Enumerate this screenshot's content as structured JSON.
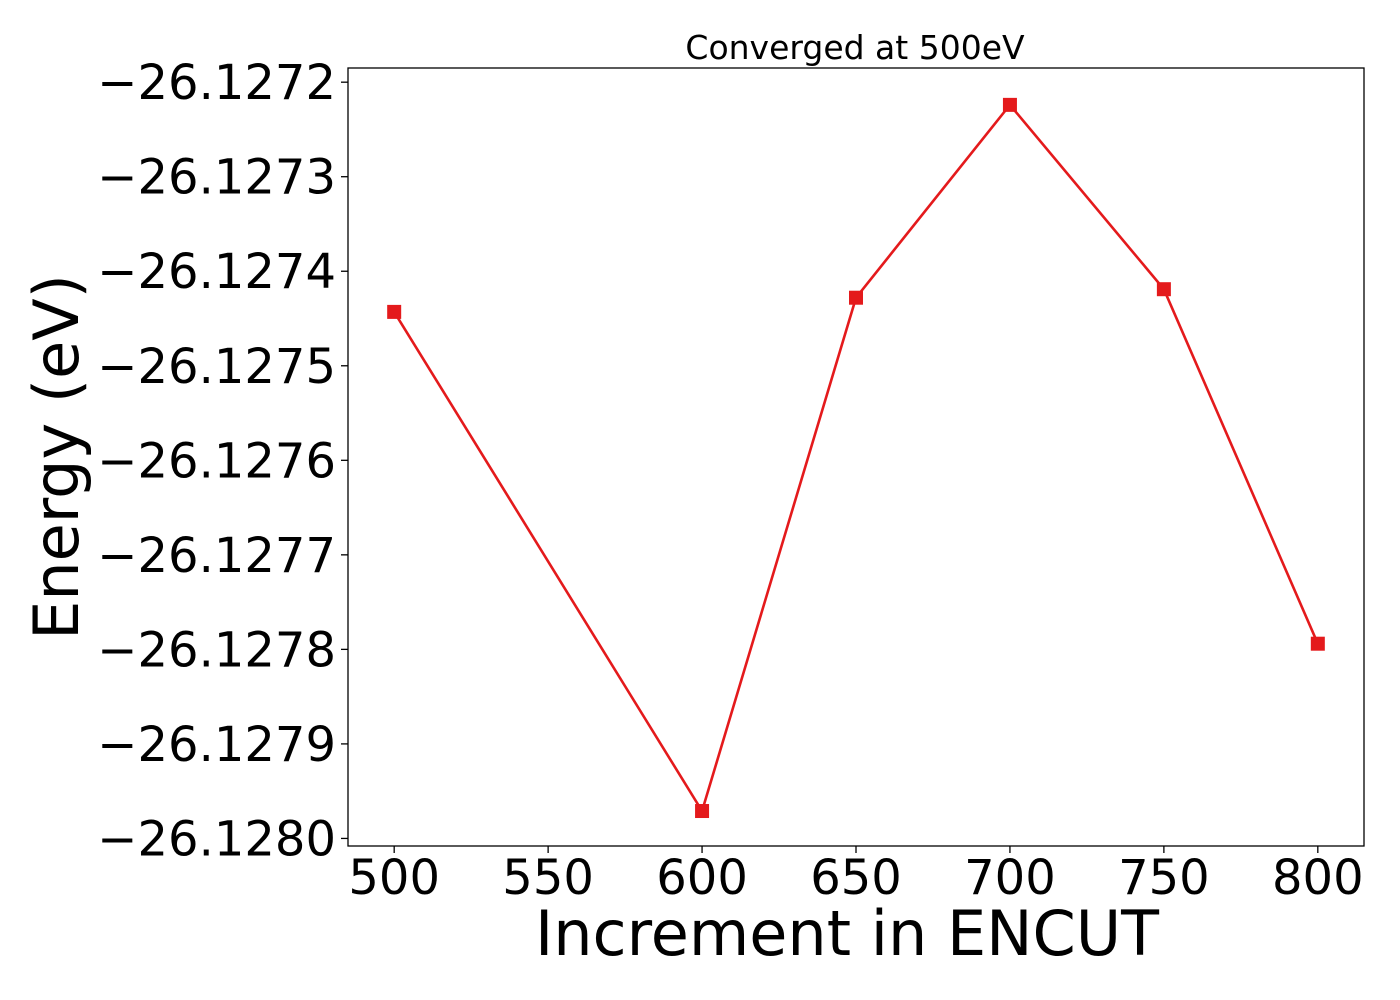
{
  "chart_data": {
    "type": "line",
    "title": "Converged at 500eV",
    "xlabel": "Increment in ENCUT",
    "ylabel": "Energy (eV)",
    "x": [
      500,
      600,
      650,
      700,
      750,
      800
    ],
    "series": [
      {
        "values": [
          -26.127443,
          -26.127971,
          -26.127428,
          -26.127224,
          -26.127419,
          -26.127794
        ],
        "color": "#e41a1c",
        "marker": "square"
      }
    ],
    "xlim": [
      485,
      815
    ],
    "ylim": [
      -26.128008,
      -26.127185
    ],
    "xticks": [
      500,
      550,
      600,
      650,
      700,
      750,
      800
    ],
    "xtick_labels": [
      "500",
      "550",
      "600",
      "650",
      "700",
      "750",
      "800"
    ],
    "yticks": [
      -26.128,
      -26.1279,
      -26.1278,
      -26.1277,
      -26.1276,
      -26.1275,
      -26.1274,
      -26.1273,
      -26.1272
    ],
    "ytick_labels": [
      "−26.1280",
      "−26.1279",
      "−26.1278",
      "−26.1277",
      "−26.1276",
      "−26.1275",
      "−26.1274",
      "−26.1273",
      "−26.1272"
    ],
    "grid": false,
    "legend": "none"
  }
}
